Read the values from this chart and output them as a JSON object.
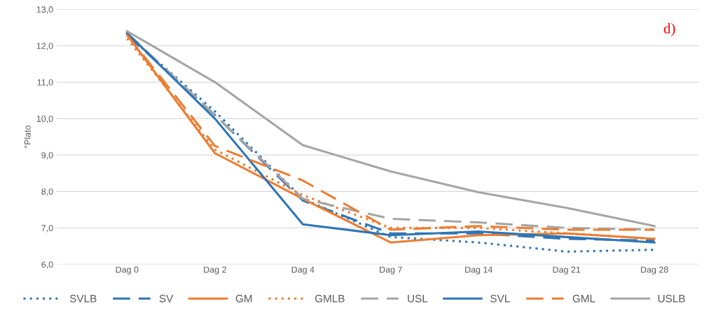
{
  "chart_data": {
    "type": "line",
    "ylabel": "°Plato",
    "annotations": [
      "d)"
    ],
    "categories": [
      "Dag 0",
      "Dag 2",
      "Dag 4",
      "Dag 7",
      "Dag 14",
      "Dag 21",
      "Dag 28"
    ],
    "series": [
      {
        "name": "SVLB",
        "color": "#2e75b6",
        "line_style": "dotted",
        "values": [
          12.3,
          10.2,
          7.8,
          6.75,
          6.6,
          6.35,
          6.4
        ]
      },
      {
        "name": "SV",
        "color": "#2e75b6",
        "line_style": "dashed",
        "values": [
          12.3,
          10.1,
          7.75,
          6.85,
          6.85,
          6.7,
          6.65
        ]
      },
      {
        "name": "GM",
        "color": "#ed7d31",
        "line_style": "solid",
        "values": [
          12.3,
          9.05,
          7.8,
          6.6,
          6.8,
          6.85,
          6.7
        ]
      },
      {
        "name": "GMLB",
        "color": "#ed7d31",
        "line_style": "dotted",
        "values": [
          12.2,
          9.15,
          7.9,
          7.0,
          7.0,
          6.85,
          6.7
        ]
      },
      {
        "name": "USL",
        "color": "#a5a5a5",
        "line_style": "dashed",
        "values": [
          12.35,
          10.1,
          7.8,
          7.25,
          7.15,
          7.0,
          6.95
        ]
      },
      {
        "name": "SVL",
        "color": "#2e75b6",
        "line_style": "solid",
        "values": [
          12.35,
          10.0,
          7.1,
          6.8,
          6.9,
          6.75,
          6.6
        ]
      },
      {
        "name": "GML",
        "color": "#ed7d31",
        "line_style": "dashed",
        "values": [
          12.3,
          9.25,
          8.3,
          6.95,
          7.05,
          6.95,
          6.95
        ]
      },
      {
        "name": "USLB",
        "color": "#a5a5a5",
        "line_style": "solid",
        "values": [
          12.4,
          11.0,
          9.27,
          8.55,
          7.98,
          7.55,
          7.05
        ]
      }
    ],
    "ylim": [
      6,
      13
    ],
    "yticks": [
      {
        "value": 6,
        "label": "6,0"
      },
      {
        "value": 7,
        "label": "7,0"
      },
      {
        "value": 8,
        "label": "8,0"
      },
      {
        "value": 9,
        "label": "9,0"
      },
      {
        "value": 10,
        "label": "10,0"
      },
      {
        "value": 11,
        "label": "11,0"
      },
      {
        "value": 12,
        "label": "12,0"
      },
      {
        "value": 13,
        "label": "13,0"
      }
    ],
    "grid": "y",
    "legend": "bottom",
    "marker": "none"
  }
}
